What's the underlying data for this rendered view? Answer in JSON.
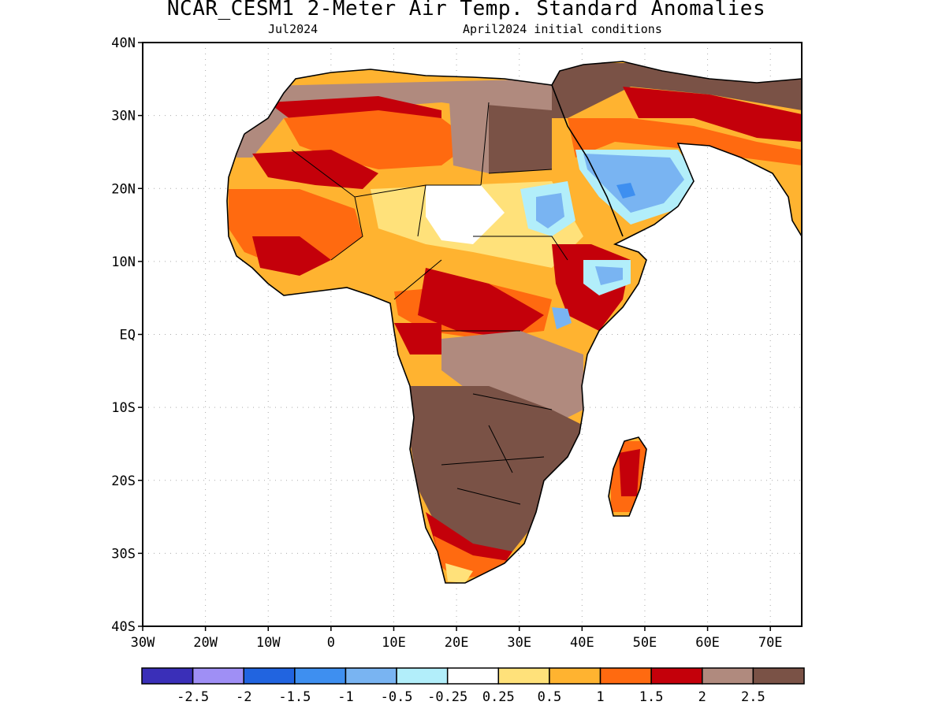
{
  "title": "NCAR_CESM1 2-Meter Air Temp. Standard Anomalies",
  "subtitle_left": "Jul2024",
  "subtitle_right": "April2024 initial conditions",
  "lon_labels": [
    "30W",
    "20W",
    "10W",
    "0",
    "10E",
    "20E",
    "30E",
    "40E",
    "50E",
    "60E",
    "70E"
  ],
  "lat_labels": [
    "40N",
    "30N",
    "20N",
    "10N",
    "EQ",
    "10S",
    "20S",
    "30S",
    "40S"
  ],
  "colorbar": {
    "colors": [
      "#3a2fb8",
      "#9f8ff5",
      "#2164e0",
      "#3e8ff0",
      "#79b4f2",
      "#b2eefa",
      "#ffffff",
      "#ffe17a",
      "#ffb330",
      "#ff6a10",
      "#c4000a",
      "#b08a7e",
      "#7a5246"
    ],
    "labels": [
      "-2.5",
      "-2",
      "-1.5",
      "-1",
      "-0.5",
      "-0.25",
      "0.25",
      "0.5",
      "1",
      "1.5",
      "2",
      "2.5"
    ]
  },
  "colors": {
    "brown": "#7a5246",
    "lightbrown": "#b08a7e",
    "red": "#c4000a",
    "orange": "#ff6a10",
    "lightorange": "#ffb330",
    "yellow": "#ffe17a",
    "lightblue": "#79b4f2",
    "cyan": "#b2eefa",
    "blue": "#3e8ff0"
  }
}
